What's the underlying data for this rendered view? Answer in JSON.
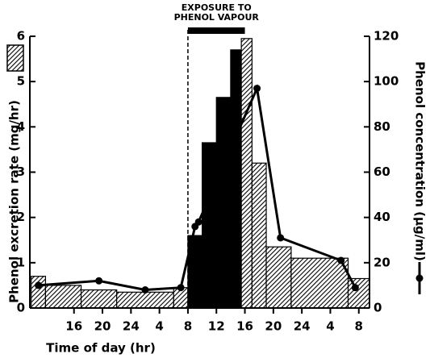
{
  "chart_data": {
    "type": "histogram",
    "bins": [
      10,
      12,
      17,
      22,
      30,
      32,
      34,
      36,
      38,
      39.5,
      41,
      43,
      46.5,
      54.5,
      57.5
    ],
    "values": [
      0.7,
      0.5,
      0.4,
      0.35,
      0.45,
      1.6,
      3.65,
      4.65,
      5.7,
      5.95,
      3.2,
      1.35,
      1.1,
      0.65
    ],
    "fills": [
      "hatched",
      "hatched",
      "hatched",
      "hatched",
      "hatched",
      "solid",
      "solid",
      "solid",
      "solid",
      "hatched",
      "hatched",
      "hatched",
      "hatched",
      "hatched"
    ],
    "series": [
      {
        "color": "#000",
        "axis": "y2",
        "x": [
          11,
          19.5,
          26,
          31,
          33,
          33.5,
          41.7,
          45,
          53.5,
          55.5
        ],
        "values": [
          10,
          12,
          8,
          9,
          36,
          38,
          97,
          31,
          21,
          9
        ]
      }
    ],
    "xlabel": "Time of day (hr)",
    "ylabel": "Phenol excretion rate (mg/hr)",
    "y2label": "Phenol concentration (µg/ml)",
    "xlim": [
      9.8,
      57.5
    ],
    "xticks": [
      16,
      20,
      24,
      {
        "value": 28,
        "label": "4"
      },
      {
        "value": 32,
        "label": "8"
      },
      {
        "value": 36,
        "label": "12"
      },
      {
        "value": 40,
        "label": "16"
      },
      {
        "value": 44,
        "label": "20"
      },
      {
        "value": 48,
        "label": "24"
      },
      {
        "value": 52,
        "label": "4"
      },
      {
        "value": 56,
        "label": "8"
      }
    ],
    "ylim": [
      0,
      6
    ],
    "yticks": [
      0,
      1,
      2,
      3,
      4,
      5,
      6
    ],
    "y2lim": [
      0,
      120
    ],
    "y2ticks": [
      0,
      20,
      40,
      60,
      80,
      100,
      120
    ],
    "annotation": {
      "lines": [
        "EXPOSURE   TO",
        "PHENOL VAPOUR"
      ],
      "start": 32,
      "end": 40
    }
  }
}
